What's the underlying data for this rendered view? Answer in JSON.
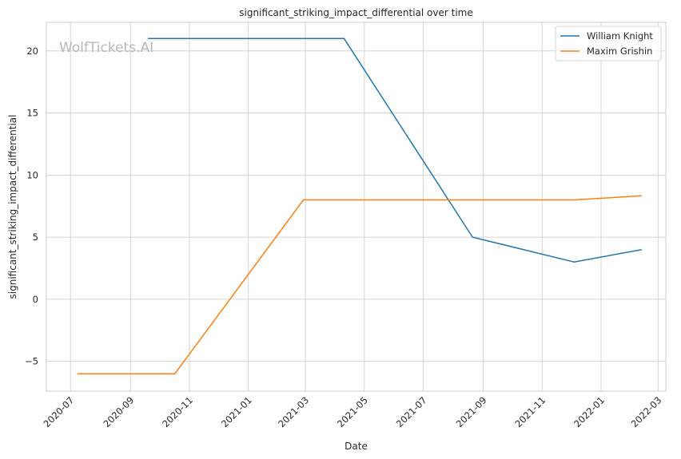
{
  "chart_data": {
    "type": "line",
    "title": "significant_striking_impact_differential over time",
    "xlabel": "Date",
    "ylabel": "significant_striking_impact_differential",
    "watermark": "WolfTickets.AI",
    "xlim": [
      "2020-06-06",
      "2022-03-09"
    ],
    "ylim": [
      -7.4,
      22.3
    ],
    "x_ticks": [
      "2020-07",
      "2020-09",
      "2020-11",
      "2021-01",
      "2021-03",
      "2021-05",
      "2021-07",
      "2021-09",
      "2021-11",
      "2022-01",
      "2022-03"
    ],
    "y_ticks": [
      -5,
      0,
      5,
      10,
      15,
      20
    ],
    "grid": true,
    "legend_position": "top-right",
    "series": [
      {
        "name": "William Knight",
        "color": "#1f77b4",
        "points": [
          {
            "x": "2020-09-19",
            "y": 21
          },
          {
            "x": "2021-04-10",
            "y": 21
          },
          {
            "x": "2021-08-21",
            "y": 5
          },
          {
            "x": "2021-12-04",
            "y": 3
          },
          {
            "x": "2022-02-12",
            "y": 4
          }
        ]
      },
      {
        "name": "Maxim Grishin",
        "color": "#ff7f0e",
        "points": [
          {
            "x": "2020-07-08",
            "y": -6
          },
          {
            "x": "2020-10-17",
            "y": -6
          },
          {
            "x": "2021-02-27",
            "y": 8
          },
          {
            "x": "2021-12-04",
            "y": 8
          },
          {
            "x": "2022-02-12",
            "y": 8.33
          }
        ]
      }
    ]
  }
}
